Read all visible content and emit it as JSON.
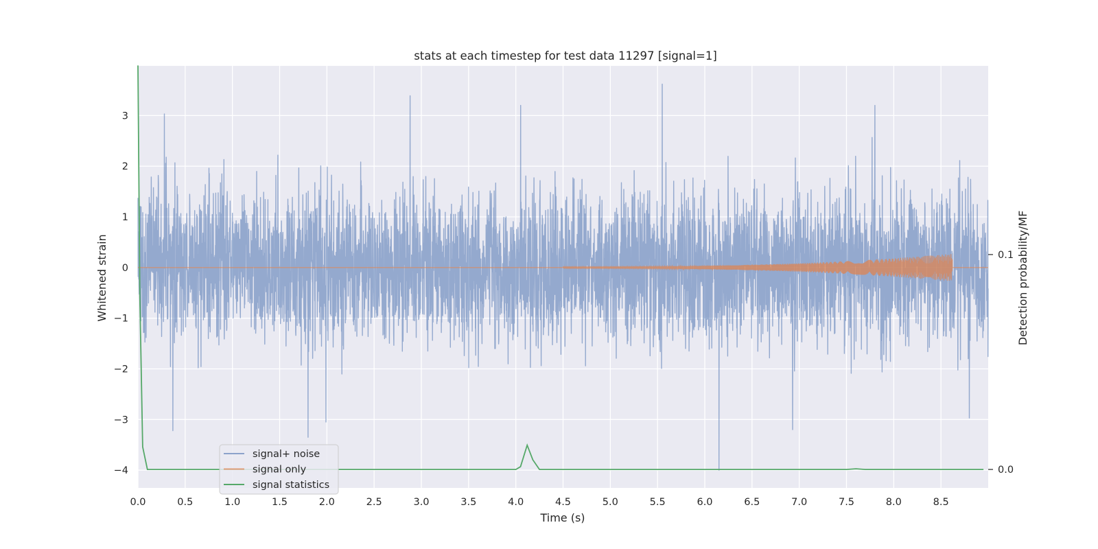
{
  "chart_data": {
    "type": "line",
    "title": "stats at each timestep for test data 11297 [signal=1]",
    "xlabel": "Time (s)",
    "ylabel": "Whitened strain",
    "y2label": "Detection probability/MF",
    "xlim": [
      0.0,
      9.0
    ],
    "ylim": [
      -4.35,
      3.98
    ],
    "y2lim": [
      -0.0086,
      0.1878
    ],
    "x_ticks": [
      0.0,
      0.5,
      1.0,
      1.5,
      2.0,
      2.5,
      3.0,
      3.5,
      4.0,
      4.5,
      5.0,
      5.5,
      6.0,
      6.5,
      7.0,
      7.5,
      8.0,
      8.5
    ],
    "x_tick_labels": [
      "0.0",
      "0.5",
      "1.0",
      "1.5",
      "2.0",
      "2.5",
      "3.0",
      "3.5",
      "4.0",
      "4.5",
      "5.0",
      "5.5",
      "6.0",
      "6.5",
      "7.0",
      "7.5",
      "8.0",
      "8.5"
    ],
    "y_ticks": [
      3,
      2,
      1,
      0,
      -1,
      -2,
      -3,
      -4
    ],
    "y_tick_labels": [
      "3",
      "2",
      "1",
      "0",
      "−1",
      "−2",
      "−3",
      "−4"
    ],
    "y2_ticks": [
      0.1,
      0.0
    ],
    "y2_tick_labels": [
      "0.1",
      "0.0"
    ],
    "grid": true,
    "legend": {
      "placement": "lower-left"
    },
    "colors": {
      "background": "#eaeaf2",
      "grid": "#ffffff",
      "noise": "#4c72b0",
      "signal": "#dd8452",
      "stats": "#55a868"
    },
    "series": [
      {
        "name": "signal+ noise",
        "axis": "left",
        "description_samples": "Whitened strain noise roughly between -2.5 and 3, with peaks reaching 3.6 near t=5.55 and a dip to -4.0 near t=6.15",
        "peaks": [
          {
            "x": 0.28,
            "y": 3.03
          },
          {
            "x": 0.37,
            "y": -3.22
          },
          {
            "x": 1.8,
            "y": -3.35
          },
          {
            "x": 1.99,
            "y": -3.05
          },
          {
            "x": 2.88,
            "y": 3.39
          },
          {
            "x": 4.05,
            "y": 3.2
          },
          {
            "x": 5.55,
            "y": 3.62
          },
          {
            "x": 6.15,
            "y": -4.0
          },
          {
            "x": 6.93,
            "y": -3.2
          },
          {
            "x": 7.8,
            "y": 3.2
          },
          {
            "x": 8.8,
            "y": -2.97
          }
        ]
      },
      {
        "name": "signal only",
        "axis": "left",
        "chirp": {
          "start_x": 4.5,
          "end_x": 8.62,
          "peak_amplitude": 0.27
        }
      },
      {
        "name": "signal statistics",
        "axis": "right",
        "x": [
          0.0,
          0.02,
          0.05,
          0.1,
          0.5,
          1.0,
          1.5,
          2.0,
          2.5,
          3.0,
          3.5,
          4.0,
          4.05,
          4.12,
          4.18,
          4.25,
          4.5,
          5.0,
          5.5,
          6.0,
          6.5,
          7.0,
          7.5,
          7.6,
          7.7,
          8.0,
          8.5,
          8.95
        ],
        "values": [
          0.188,
          0.08,
          0.0105,
          0.0,
          0.0,
          0.0,
          0.0,
          0.0,
          0.0,
          0.0,
          0.0,
          0.0,
          0.0013,
          0.0113,
          0.0045,
          0.0,
          0.0,
          0.0,
          0.0,
          0.0,
          0.0,
          0.0,
          0.0,
          0.0003,
          0.0,
          0.0,
          0.0,
          0.0
        ]
      }
    ]
  }
}
